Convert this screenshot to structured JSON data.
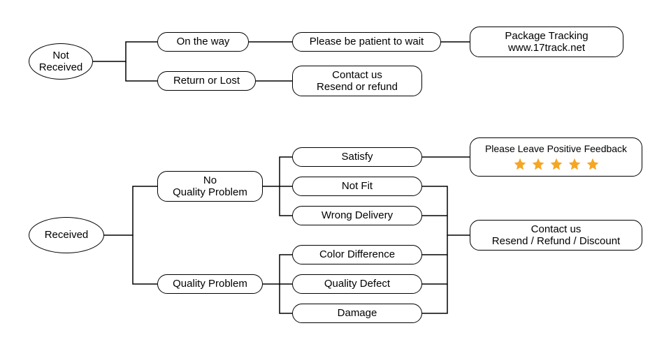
{
  "diagram": {
    "type": "flowchart",
    "background_color": "#ffffff",
    "border_color": "#000000",
    "line_color": "#000000",
    "text_color": "#000000",
    "star_color": "#f5a623",
    "font_size_normal": 15,
    "font_size_small": 14,
    "border_width": 1.5,
    "line_width": 1.5
  },
  "nodes": {
    "not_received": {
      "label": "Not\nReceived"
    },
    "on_the_way": {
      "label": "On the way"
    },
    "return_or_lost": {
      "label": "Return or Lost"
    },
    "please_wait": {
      "label": "Please be patient to wait"
    },
    "contact_resend_refund": {
      "line1": "Contact us",
      "line2": "Resend or refund"
    },
    "package_tracking": {
      "line1": "Package Tracking",
      "line2": "www.17track.net"
    },
    "received": {
      "label": "Received"
    },
    "no_quality_problem": {
      "line1": "No",
      "line2": "Quality Problem"
    },
    "quality_problem": {
      "label": "Quality Problem"
    },
    "satisfy": {
      "label": "Satisfy"
    },
    "not_fit": {
      "label": "Not Fit"
    },
    "wrong_delivery": {
      "label": "Wrong Delivery"
    },
    "color_difference": {
      "label": "Color Difference"
    },
    "quality_defect": {
      "label": "Quality Defect"
    },
    "damage": {
      "label": "Damage"
    },
    "positive_feedback": {
      "line1": "Please Leave Positive Feedback"
    },
    "contact_options": {
      "line1": "Contact us",
      "line2": "Resend / Refund / Discount"
    }
  }
}
